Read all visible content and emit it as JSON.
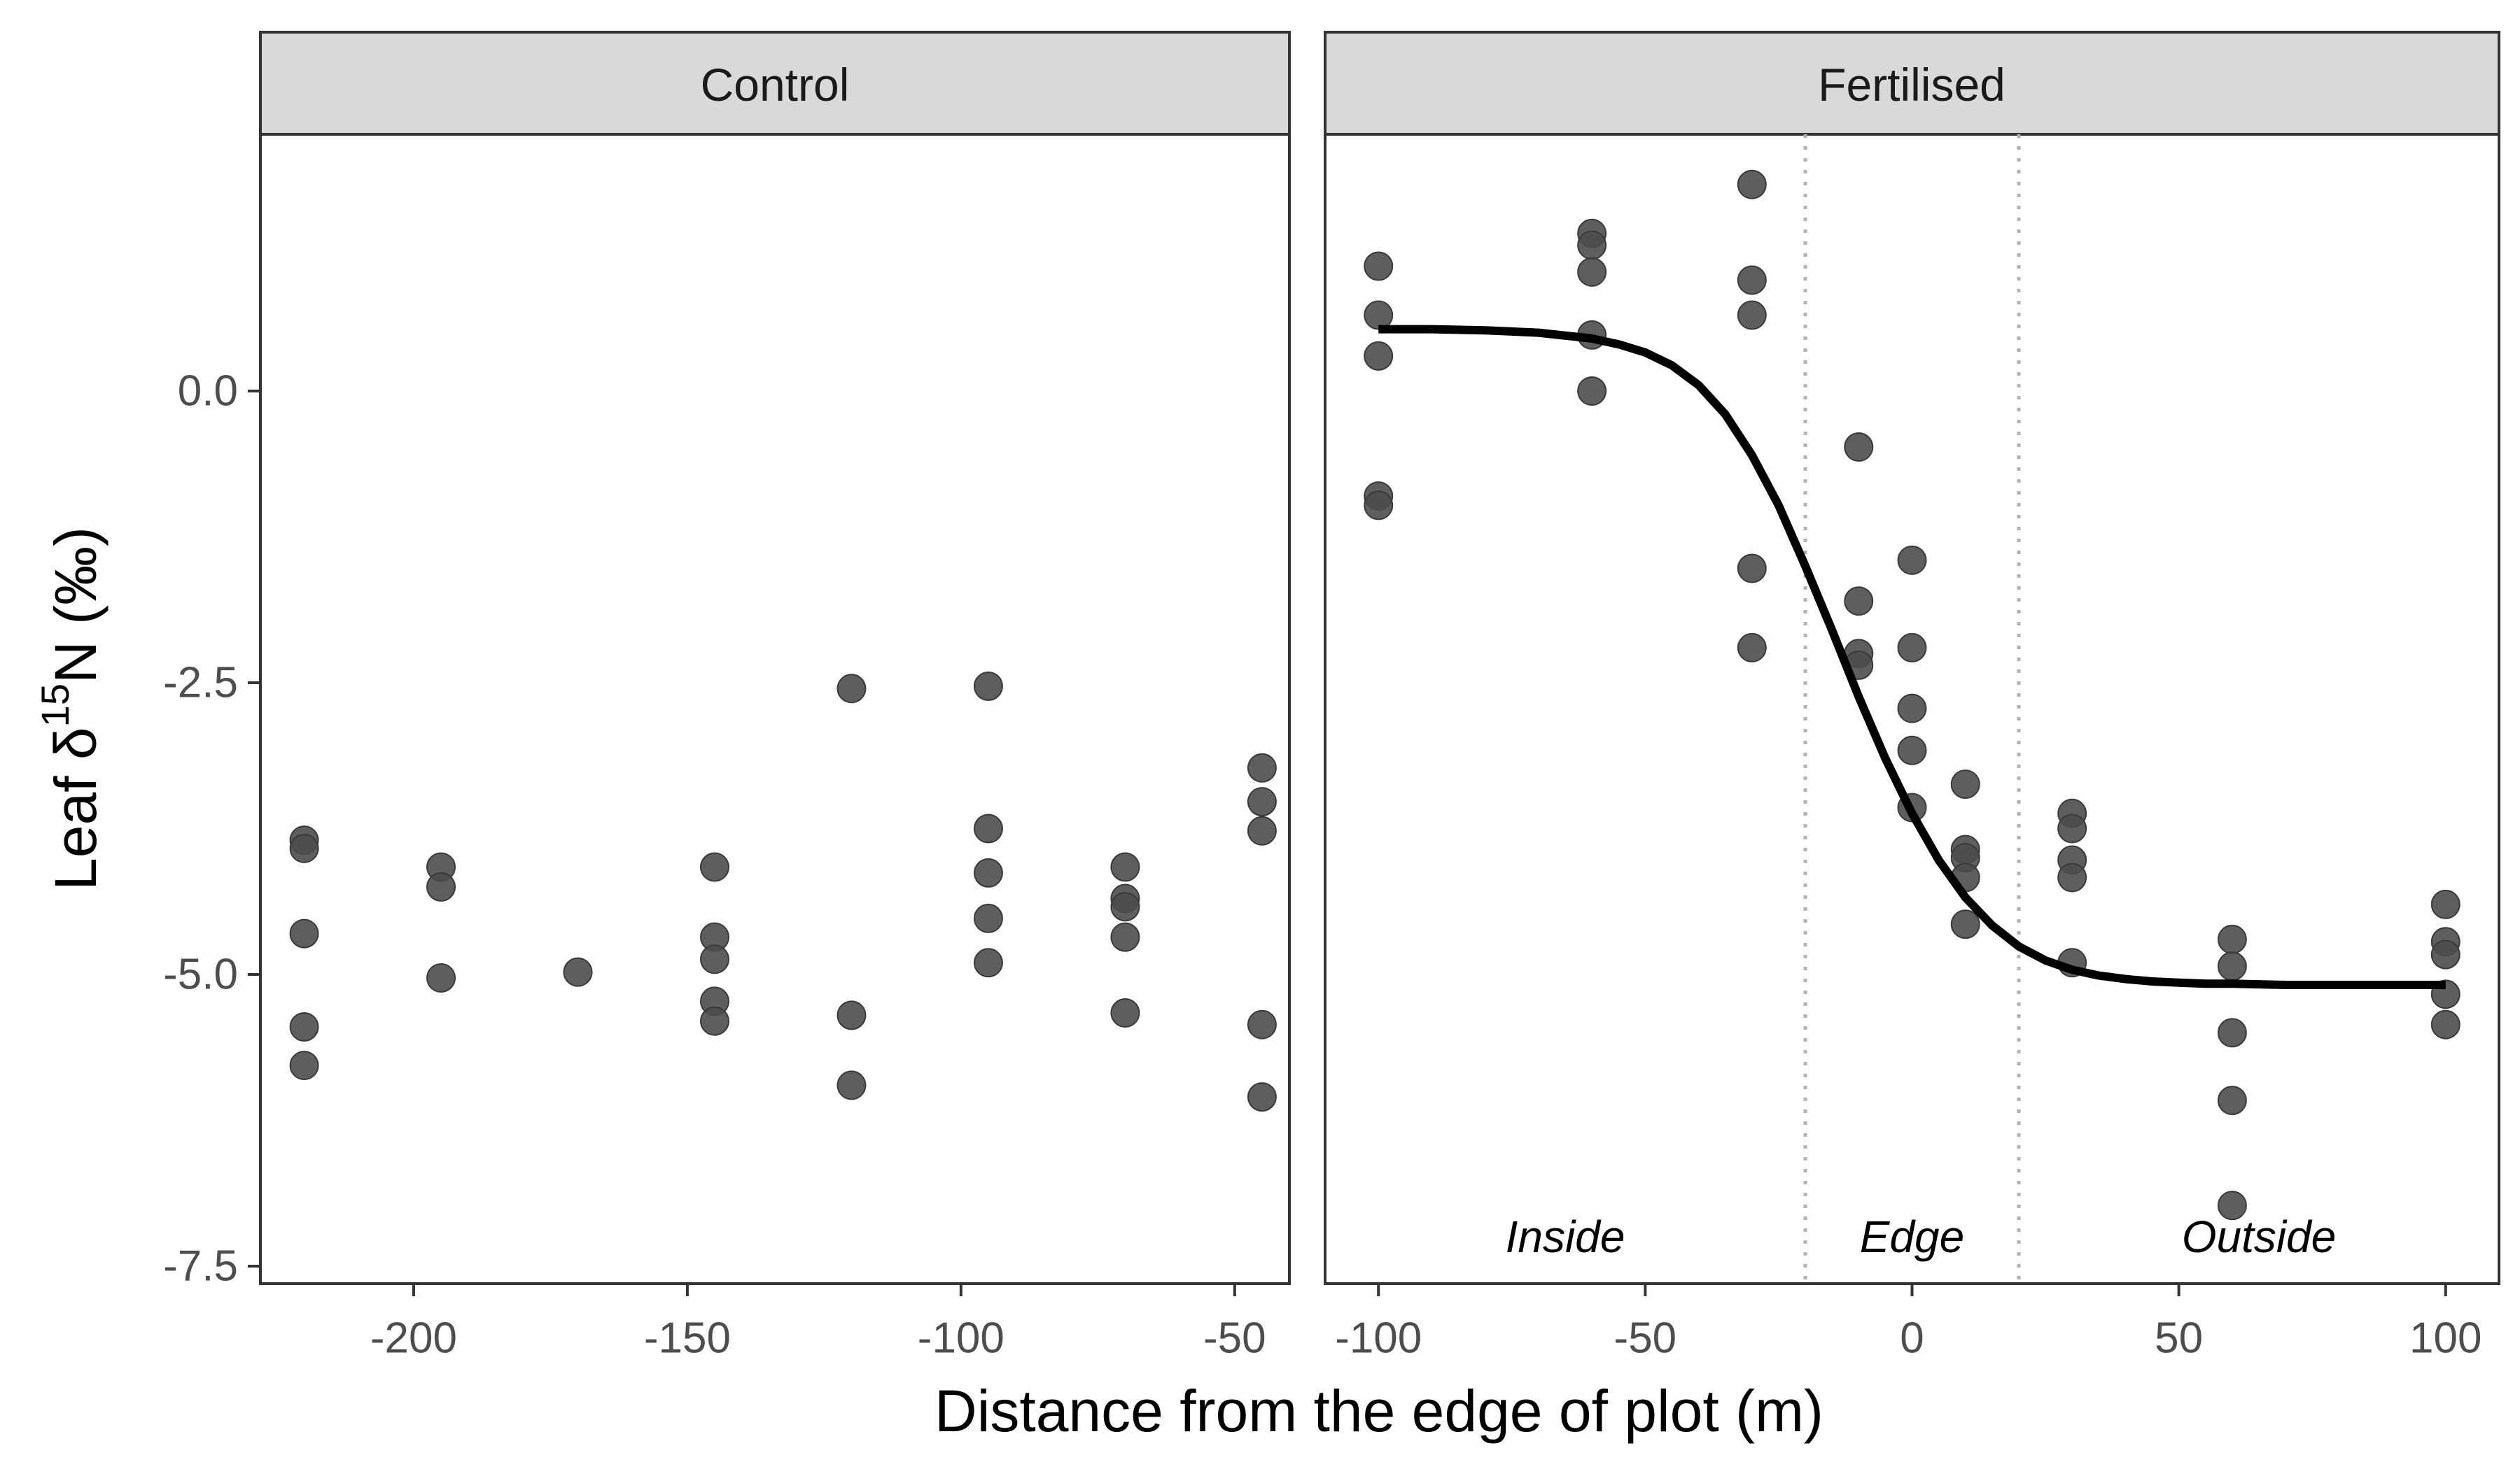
{
  "chart_data": {
    "type": "scatter",
    "xlabel": "Distance from the edge of plot (m)",
    "ylabel": {
      "prefix": "Leaf δ",
      "superscript": "15",
      "suffix": "N (‰)"
    },
    "y_ticks": [
      "0.0",
      "-2.5",
      "-5.0",
      "-7.5"
    ],
    "y_tick_values": [
      0,
      -2.5,
      -5,
      -7.5
    ],
    "ylim": [
      -7.65,
      2.2
    ],
    "grid": false,
    "colors": {
      "points": "#4d4d4d",
      "curve": "#000000",
      "strip_bg": "#d9d9d9",
      "boundary": "#b3b3b3"
    },
    "panels": [
      {
        "strip_label": "Control",
        "xlim": [
          -228,
          -40
        ],
        "x_ticks": [
          "-200",
          "-150",
          "-100",
          "-50"
        ],
        "x_tick_values": [
          -200,
          -150,
          -100,
          -50
        ],
        "points": [
          [
            -220,
            -3.85
          ],
          [
            -220,
            -3.92
          ],
          [
            -220,
            -4.65
          ],
          [
            -220,
            -5.45
          ],
          [
            -220,
            -5.78
          ],
          [
            -195,
            -4.08
          ],
          [
            -195,
            -4.25
          ],
          [
            -195,
            -5.03
          ],
          [
            -170,
            -4.98
          ],
          [
            -145,
            -4.08
          ],
          [
            -145,
            -4.68
          ],
          [
            -145,
            -4.87
          ],
          [
            -145,
            -5.23
          ],
          [
            -145,
            -5.4
          ],
          [
            -120,
            -2.55
          ],
          [
            -120,
            -5.35
          ],
          [
            -120,
            -5.95
          ],
          [
            -95,
            -2.53
          ],
          [
            -95,
            -3.75
          ],
          [
            -95,
            -4.13
          ],
          [
            -95,
            -4.52
          ],
          [
            -95,
            -4.9
          ],
          [
            -70,
            -4.08
          ],
          [
            -70,
            -4.35
          ],
          [
            -70,
            -4.42
          ],
          [
            -70,
            -4.68
          ],
          [
            -70,
            -5.33
          ],
          [
            -45,
            -3.23
          ],
          [
            -45,
            -3.52
          ],
          [
            -45,
            -3.77
          ],
          [
            -45,
            -5.43
          ],
          [
            -45,
            -6.05
          ]
        ]
      },
      {
        "strip_label": "Fertilised",
        "xlim": [
          -110,
          110
        ],
        "x_ticks": [
          "-100",
          "-50",
          "0",
          "50",
          "100"
        ],
        "x_tick_values": [
          -100,
          -50,
          0,
          50,
          100
        ],
        "points": [
          [
            -100,
            1.07
          ],
          [
            -100,
            0.65
          ],
          [
            -100,
            0.3
          ],
          [
            -100,
            -0.9
          ],
          [
            -100,
            -0.98
          ],
          [
            -60,
            1.35
          ],
          [
            -60,
            1.25
          ],
          [
            -60,
            1.02
          ],
          [
            -60,
            0.48
          ],
          [
            -60,
            0.0
          ],
          [
            -30,
            1.77
          ],
          [
            -30,
            0.95
          ],
          [
            -30,
            0.65
          ],
          [
            -30,
            -1.52
          ],
          [
            -30,
            -2.2
          ],
          [
            -10,
            -0.48
          ],
          [
            -10,
            -1.8
          ],
          [
            -10,
            -2.25
          ],
          [
            -10,
            -2.35
          ],
          [
            0,
            -1.45
          ],
          [
            0,
            -2.2
          ],
          [
            0,
            -2.72
          ],
          [
            0,
            -3.08
          ],
          [
            0,
            -3.57
          ],
          [
            10,
            -3.37
          ],
          [
            10,
            -3.93
          ],
          [
            10,
            -4.0
          ],
          [
            10,
            -4.17
          ],
          [
            10,
            -4.57
          ],
          [
            30,
            -3.62
          ],
          [
            30,
            -3.75
          ],
          [
            30,
            -4.02
          ],
          [
            30,
            -4.17
          ],
          [
            30,
            -4.9
          ],
          [
            60,
            -4.7
          ],
          [
            60,
            -4.93
          ],
          [
            60,
            -5.5
          ],
          [
            60,
            -6.08
          ],
          [
            60,
            -6.98
          ],
          [
            100,
            -4.4
          ],
          [
            100,
            -4.72
          ],
          [
            100,
            -4.83
          ],
          [
            100,
            -5.17
          ],
          [
            100,
            -5.43
          ]
        ],
        "fitted_curve": {
          "x": [
            -100,
            -90,
            -80,
            -70,
            -60,
            -55,
            -50,
            -45,
            -40,
            -35,
            -30,
            -25,
            -20,
            -15,
            -10,
            -5,
            0,
            5,
            10,
            15,
            20,
            25,
            30,
            35,
            40,
            45,
            50,
            55,
            60,
            70,
            80,
            90,
            100
          ],
          "y": [
            0.53,
            0.53,
            0.52,
            0.5,
            0.45,
            0.4,
            0.33,
            0.22,
            0.05,
            -0.2,
            -0.55,
            -0.98,
            -1.5,
            -2.05,
            -2.62,
            -3.15,
            -3.62,
            -4.02,
            -4.34,
            -4.58,
            -4.76,
            -4.88,
            -4.96,
            -5.01,
            -5.04,
            -5.06,
            -5.07,
            -5.08,
            -5.08,
            -5.09,
            -5.09,
            -5.09,
            -5.09
          ]
        },
        "boundaries_x": [
          -20,
          20
        ],
        "region_labels": [
          {
            "text": "Inside",
            "x": -65
          },
          {
            "text": "Edge",
            "x": 0
          },
          {
            "text": "Outside",
            "x": 65
          }
        ]
      }
    ]
  }
}
